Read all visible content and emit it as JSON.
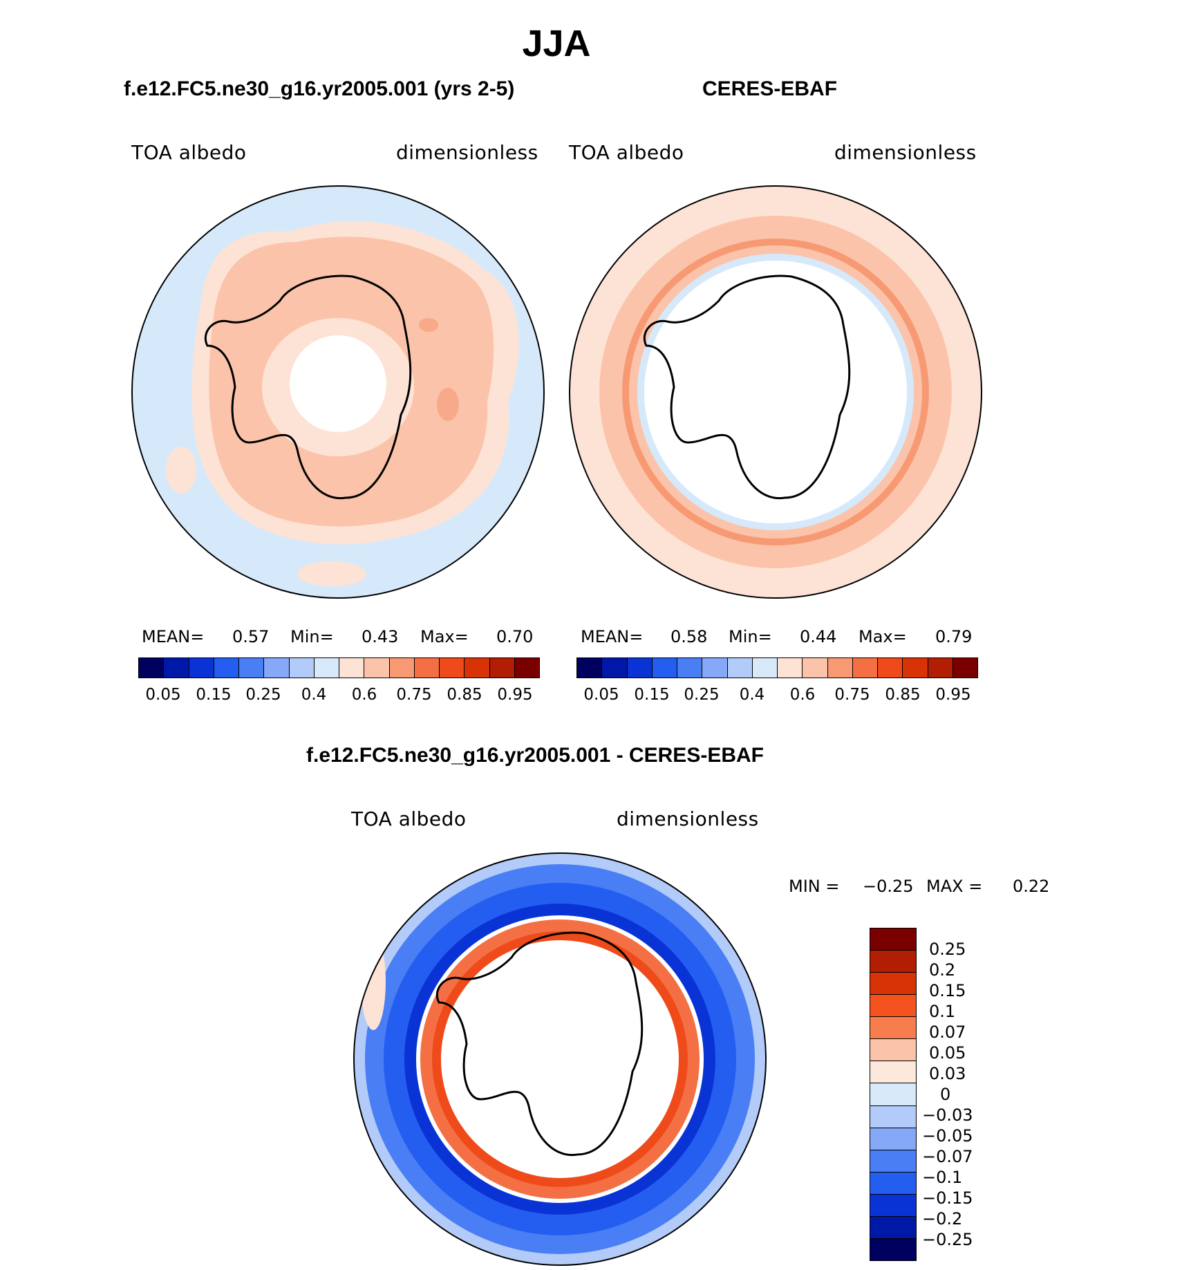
{
  "title": "JJA",
  "panels": [
    {
      "id": "model",
      "title": "f.e12.FC5.ne30_g16.yr2005.001 (yrs 2-5)",
      "left_label": "TOA  albedo",
      "right_label": "dimensionless",
      "stats": {
        "mean_label": "MEAN=",
        "mean": "0.57",
        "min_label": "Min=",
        "min": "0.43",
        "max_label": "Max=",
        "max": "0.70"
      },
      "ring_colors": [
        "#d6e9fa",
        "#fde3d5",
        "#fbc4aa",
        "#fde3d5",
        "#ffffff"
      ],
      "ring_values": [
        0.4,
        0.6,
        0.75,
        0.6,
        null
      ]
    },
    {
      "id": "obs",
      "title": "CERES-EBAF",
      "left_label": "TOA  albedo",
      "right_label": "dimensionless",
      "stats": {
        "mean_label": "MEAN=",
        "mean": "0.58",
        "min_label": "Min=",
        "min": "0.44",
        "max_label": "Max=",
        "max": "0.79"
      },
      "ring_colors": [
        "#fde3d5",
        "#fbc4aa",
        "#f79a74",
        "#fbc4aa",
        "#d6e9fa",
        "#ffffff"
      ],
      "ring_values": [
        0.6,
        0.75,
        0.85,
        0.75,
        0.4,
        null
      ]
    }
  ],
  "colorbar": {
    "colors": [
      "#00005e",
      "#0018a8",
      "#0a33d6",
      "#245ef0",
      "#4a7ef5",
      "#86a9f7",
      "#b3cbf9",
      "#d8e9fa",
      "#fde3d5",
      "#fbc4aa",
      "#f79a74",
      "#f47044",
      "#ef4a1a",
      "#d83207",
      "#b21e04",
      "#7a0000"
    ],
    "labels": [
      "0.05",
      "0.15",
      "0.25",
      "0.4",
      "0.6",
      "0.75",
      "0.85",
      "0.95"
    ]
  },
  "diff": {
    "title": "f.e12.FC5.ne30_g16.yr2005.001 - CERES-EBAF",
    "left_label": "TOA  albedo",
    "right_label": "dimensionless",
    "min_label": "MIN =",
    "min": "−0.25",
    "max_label": "MAX =",
    "max": "0.22",
    "ring_colors": [
      "#b3cbf9",
      "#4a7ef5",
      "#245ef0",
      "#ffffff",
      "#f47044",
      "#ef4a1a",
      "#ffffff"
    ],
    "colorbar": {
      "colors": [
        "#7a0000",
        "#b21e04",
        "#d83207",
        "#f4521e",
        "#f77d4c",
        "#fbc4aa",
        "#fde9dc",
        "#d8e9fa",
        "#b3cbf9",
        "#86a9f7",
        "#4a7ef5",
        "#245ef0",
        "#0a33d6",
        "#0018a8",
        "#00005e"
      ],
      "labels": [
        "0.25",
        "0.2",
        "0.15",
        "0.1",
        "0.07",
        "0.05",
        "0.03",
        "0",
        "−0.03",
        "−0.05",
        "−0.07",
        "−0.1",
        "−0.15",
        "−0.2",
        "−0.25"
      ]
    }
  }
}
